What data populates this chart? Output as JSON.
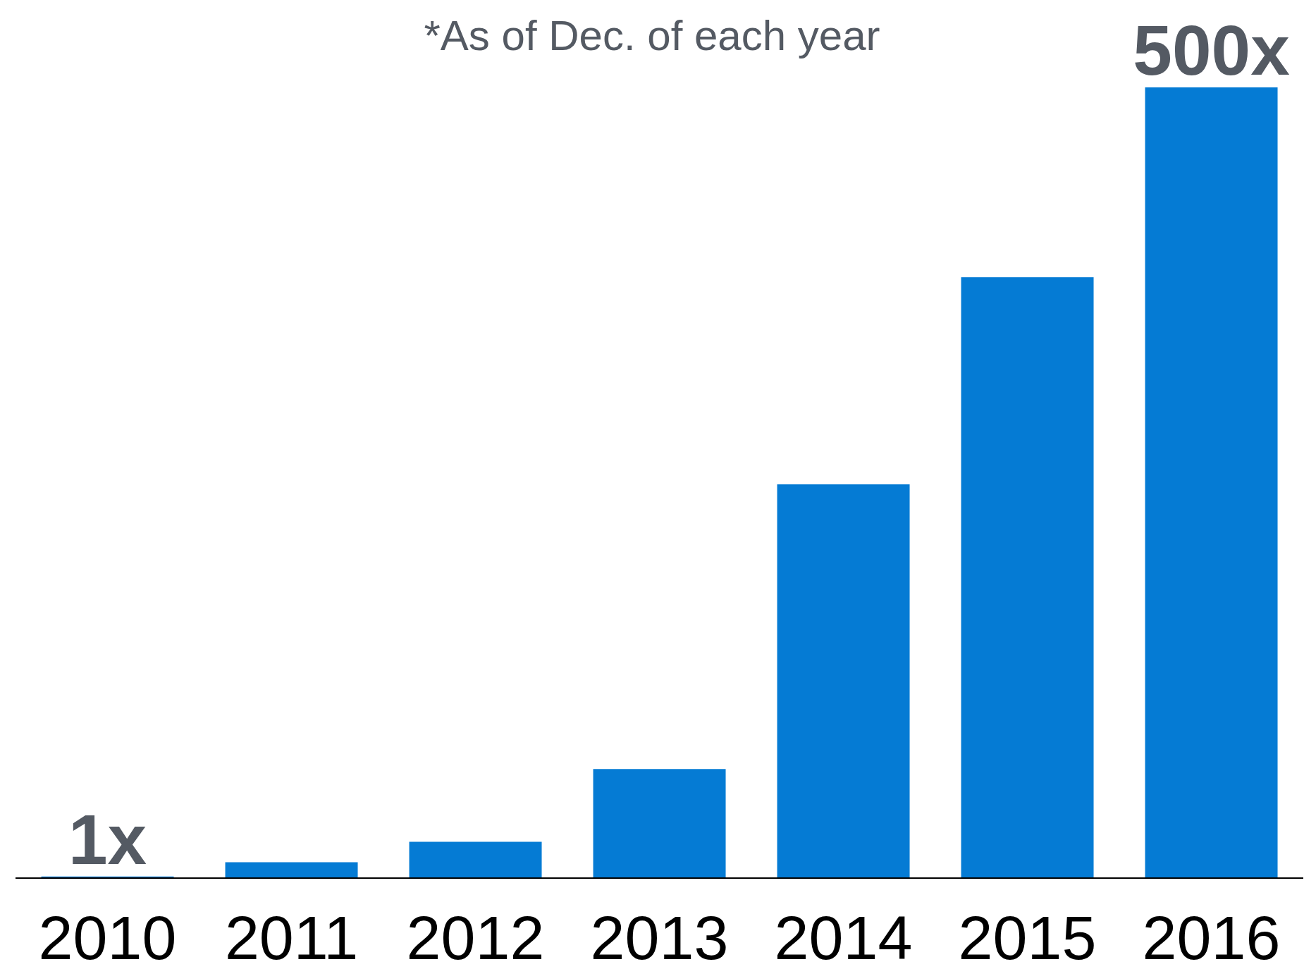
{
  "chart_data": {
    "type": "bar",
    "categories": [
      "2010",
      "2011",
      "2012",
      "2013",
      "2014",
      "2015",
      "2016"
    ],
    "values": [
      1,
      10,
      23,
      69,
      249,
      380,
      500
    ],
    "value_labels": [
      "1x",
      null,
      null,
      null,
      null,
      null,
      "500x"
    ],
    "color": "#057bd4",
    "annotations": [
      "*As of Dec. of each year"
    ]
  }
}
